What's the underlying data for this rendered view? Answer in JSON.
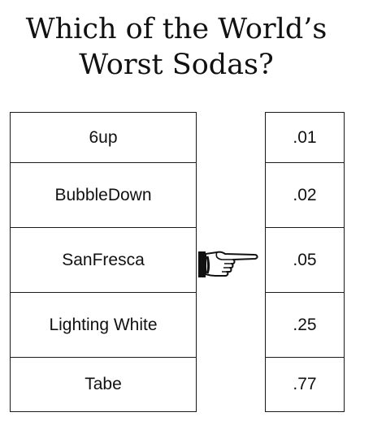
{
  "title": {
    "line1": "Which of the World’s",
    "line2": "Worst Sodas?"
  },
  "sodas": [
    {
      "name": "6up",
      "value": ".01"
    },
    {
      "name": "BubbleDown",
      "value": ".02"
    },
    {
      "name": "SanFresca",
      "value": ".05"
    },
    {
      "name": "Lighting White",
      "value": ".25"
    },
    {
      "name": "Tabe",
      "value": ".77"
    }
  ],
  "pointer": {
    "icon": "pointing-hand-icon",
    "selected_row": 2
  }
}
